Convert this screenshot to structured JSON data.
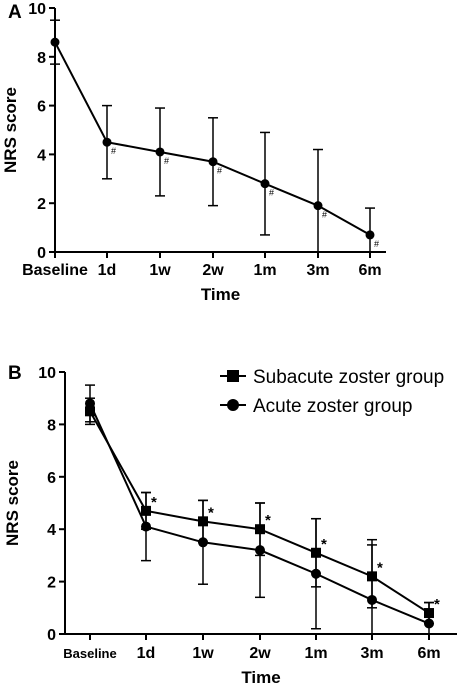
{
  "chart_data": [
    {
      "panel_label": "A",
      "type": "line",
      "xlabel": "Time",
      "ylabel": "NRS score",
      "categories": [
        "Baseline",
        "1d",
        "1w",
        "2w",
        "1m",
        "3m",
        "6m"
      ],
      "yticks": [
        "0",
        "2",
        "4",
        "6",
        "8",
        "10"
      ],
      "ylim": [
        0,
        10
      ],
      "grid": false,
      "marker_symbol": "#",
      "series": [
        {
          "marker": "circle",
          "values": [
            8.6,
            4.5,
            4.1,
            3.7,
            2.8,
            1.9,
            0.7
          ],
          "error": [
            0.9,
            1.5,
            1.8,
            1.8,
            2.1,
            2.3,
            1.1
          ],
          "annotations": [
            "",
            "#",
            "#",
            "#",
            "#",
            "#",
            "#"
          ]
        }
      ]
    },
    {
      "panel_label": "B",
      "type": "line",
      "xlabel": "Time",
      "ylabel": "NRS score",
      "categories": [
        "Baseline",
        "1d",
        "1w",
        "2w",
        "1m",
        "3m",
        "6m"
      ],
      "yticks": [
        "0",
        "2",
        "4",
        "6",
        "8",
        "10"
      ],
      "ylim": [
        0,
        10
      ],
      "grid": false,
      "legend_position": "top-right",
      "marker_symbol": "*",
      "series": [
        {
          "name": "Subacute zoster group",
          "marker": "square",
          "values": [
            8.5,
            4.7,
            4.3,
            4.0,
            3.1,
            2.2,
            0.8
          ],
          "error": [
            0.5,
            0.7,
            0.8,
            1.0,
            1.3,
            1.2,
            0.4
          ],
          "annotations": [
            "",
            "*",
            "*",
            "*",
            "*",
            "*",
            "*"
          ]
        },
        {
          "name": "Acute zoster group",
          "marker": "circle",
          "values": [
            8.8,
            4.1,
            3.5,
            3.2,
            2.3,
            1.3,
            0.4
          ],
          "error": [
            0.7,
            1.3,
            1.6,
            1.8,
            2.1,
            2.3,
            0.8
          ],
          "annotations": [
            "",
            "",
            "",
            "",
            "",
            "",
            ""
          ]
        }
      ]
    }
  ]
}
